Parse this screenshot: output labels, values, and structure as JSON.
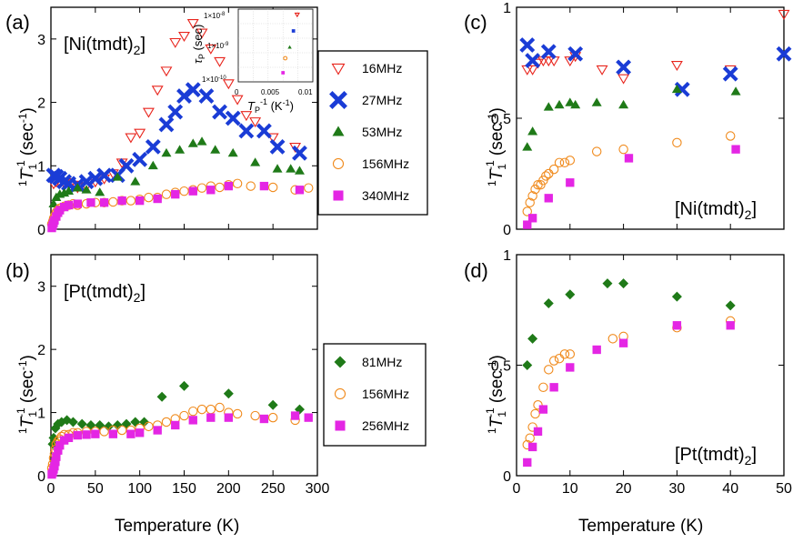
{
  "figure": {
    "xlabel": "Temperature (K)",
    "ylabel_pre": "1",
    "ylabel_T": "T",
    "ylabel_sub": "1",
    "ylabel_sup": "-1",
    "ylabel_unit": " (sec",
    "ylabel_unit_sup": "-1",
    "ylabel_close": ")"
  },
  "inset": {
    "ylabel": "τ",
    "ylabel_sub": "P",
    "ylabel_unit": " (sec)",
    "xlabel": "T",
    "xlabel_sub": "P",
    "xlabel_sup": "-1",
    "xlabel_unit": " (K",
    "xlabel_unit_sup": "-1",
    "xlabel_close": ")",
    "yticks": [
      "1×10",
      "1×10",
      "1×10"
    ],
    "ytick_exps": [
      "-8",
      "-9",
      "-10"
    ],
    "xticks": [
      "0",
      "0.005",
      "0.01"
    ]
  },
  "chart_data": [
    {
      "id": "a",
      "type": "scatter",
      "panel_label": "(a)",
      "compound": "[Ni(tmdt)",
      "compound_sub": "2",
      "compound_close": "]",
      "xlim": [
        0,
        300
      ],
      "ylim": [
        0,
        3.5
      ],
      "yticks": [
        "0",
        "1",
        "2",
        "3"
      ],
      "xticks": [],
      "series": [
        {
          "name": "16MHz",
          "marker": "tri-down-open",
          "color": "#e8241c",
          "x": [
            3,
            6,
            10,
            15,
            20,
            25,
            30,
            40,
            50,
            60,
            70,
            80,
            90,
            100,
            110,
            120,
            130,
            140,
            150,
            160,
            170,
            180,
            190,
            200,
            210,
            220,
            230,
            250,
            275
          ],
          "y": [
            0.72,
            0.75,
            0.74,
            0.73,
            0.74,
            0.7,
            0.66,
            0.68,
            0.75,
            0.8,
            0.88,
            1.05,
            1.45,
            1.52,
            1.85,
            2.2,
            2.5,
            2.95,
            3.05,
            3.25,
            3.1,
            2.85,
            2.65,
            2.3,
            2.05,
            1.8,
            1.7,
            1.45,
            1.3
          ]
        },
        {
          "name": "27MHz",
          "marker": "x-cross",
          "color": "#1a3cd6",
          "x": [
            3,
            6,
            10,
            15,
            20,
            30,
            40,
            50,
            60,
            75,
            85,
            100,
            115,
            130,
            140,
            150,
            160,
            175,
            190,
            205,
            220,
            240,
            255,
            280
          ],
          "y": [
            0.85,
            0.83,
            0.8,
            0.75,
            0.72,
            0.7,
            0.75,
            0.8,
            0.85,
            0.85,
            1.0,
            1.1,
            1.3,
            1.65,
            1.85,
            2.1,
            2.2,
            2.1,
            1.85,
            1.75,
            1.55,
            1.55,
            1.3,
            1.2
          ]
        },
        {
          "name": "53MHz",
          "marker": "tri-up",
          "color": "#1f7a18",
          "x": [
            3,
            6,
            10,
            15,
            20,
            30,
            40,
            55,
            75,
            95,
            115,
            130,
            145,
            160,
            170,
            185,
            205,
            230,
            255,
            270,
            280
          ],
          "y": [
            0.4,
            0.5,
            0.55,
            0.57,
            0.6,
            0.65,
            0.62,
            0.58,
            0.82,
            0.75,
            1.0,
            1.2,
            1.25,
            1.35,
            1.38,
            1.25,
            1.2,
            1.05,
            0.95,
            0.95,
            0.92
          ]
        },
        {
          "name": "156MHz",
          "marker": "circle-open",
          "color": "#f08a1c",
          "x": [
            1,
            2,
            3,
            4,
            5,
            6,
            8,
            10,
            12,
            15,
            20,
            25,
            30,
            40,
            50,
            60,
            70,
            80,
            90,
            100,
            110,
            120,
            130,
            140,
            150,
            160,
            170,
            180,
            190,
            200,
            210,
            225,
            250,
            275,
            290
          ],
          "y": [
            0.08,
            0.12,
            0.17,
            0.2,
            0.23,
            0.27,
            0.3,
            0.33,
            0.34,
            0.36,
            0.38,
            0.4,
            0.38,
            0.4,
            0.42,
            0.42,
            0.43,
            0.45,
            0.45,
            0.47,
            0.5,
            0.5,
            0.55,
            0.58,
            0.6,
            0.62,
            0.65,
            0.68,
            0.66,
            0.7,
            0.72,
            0.68,
            0.66,
            0.62,
            0.65
          ]
        },
        {
          "name": "340MHz",
          "marker": "square",
          "color": "#e426e4",
          "x": [
            1,
            2,
            3,
            4,
            6,
            8,
            10,
            15,
            20,
            30,
            45,
            60,
            80,
            100,
            120,
            140,
            160,
            180,
            200,
            240,
            280
          ],
          "y": [
            0.02,
            0.06,
            0.1,
            0.14,
            0.2,
            0.26,
            0.3,
            0.35,
            0.38,
            0.4,
            0.42,
            0.42,
            0.45,
            0.45,
            0.48,
            0.55,
            0.6,
            0.62,
            0.68,
            0.68,
            0.62
          ]
        }
      ]
    },
    {
      "id": "b",
      "type": "scatter",
      "panel_label": "(b)",
      "compound": "[Pt(tmdt)",
      "compound_sub": "2",
      "compound_close": "]",
      "xlim": [
        0,
        300
      ],
      "ylim": [
        0,
        3.5
      ],
      "yticks": [
        "0",
        "1",
        "2",
        "3"
      ],
      "xticks": [
        "0",
        "50",
        "100",
        "150",
        "200",
        "250",
        "300"
      ],
      "series": [
        {
          "name": "81MHz",
          "marker": "diamond",
          "color": "#1f7a18",
          "x": [
            2,
            3,
            5,
            8,
            12,
            18,
            25,
            35,
            45,
            55,
            65,
            75,
            85,
            95,
            105,
            125,
            150,
            200,
            250,
            280
          ],
          "y": [
            0.5,
            0.6,
            0.75,
            0.82,
            0.85,
            0.88,
            0.85,
            0.82,
            0.8,
            0.8,
            0.78,
            0.8,
            0.82,
            0.85,
            0.85,
            1.25,
            1.42,
            1.3,
            1.12,
            1.05
          ]
        },
        {
          "name": "156MHz",
          "marker": "circle-open",
          "color": "#f08a1c",
          "x": [
            1,
            2,
            3,
            4,
            5,
            6,
            8,
            10,
            12,
            15,
            20,
            25,
            30,
            40,
            50,
            60,
            70,
            80,
            90,
            100,
            110,
            120,
            130,
            140,
            150,
            160,
            170,
            180,
            190,
            200,
            210,
            230,
            250,
            275
          ],
          "y": [
            0.12,
            0.18,
            0.28,
            0.35,
            0.42,
            0.5,
            0.55,
            0.58,
            0.62,
            0.65,
            0.65,
            0.68,
            0.68,
            0.7,
            0.7,
            0.7,
            0.72,
            0.72,
            0.72,
            0.75,
            0.78,
            0.8,
            0.85,
            0.9,
            0.95,
            1.02,
            1.05,
            1.05,
            1.08,
            1.0,
            0.98,
            0.95,
            0.92,
            0.88
          ]
        },
        {
          "name": "256MHz",
          "marker": "square",
          "color": "#e426e4",
          "x": [
            1,
            2,
            3,
            4,
            5,
            6,
            8,
            10,
            15,
            20,
            30,
            40,
            50,
            70,
            90,
            100,
            120,
            140,
            160,
            180,
            200,
            240,
            275,
            290
          ],
          "y": [
            0.02,
            0.05,
            0.1,
            0.15,
            0.22,
            0.3,
            0.4,
            0.48,
            0.56,
            0.6,
            0.64,
            0.65,
            0.66,
            0.66,
            0.66,
            0.68,
            0.72,
            0.8,
            0.88,
            0.92,
            0.92,
            0.9,
            0.95,
            0.92
          ]
        }
      ]
    },
    {
      "id": "c",
      "type": "scatter",
      "panel_label": "(c)",
      "compound": "[Ni(tmdt)",
      "compound_sub": "2",
      "compound_close": "]",
      "xlim": [
        0,
        50
      ],
      "ylim": [
        0,
        1
      ],
      "yticks": [
        "0",
        "0.5",
        "1"
      ],
      "xticks": [],
      "series": [
        {
          "name": "16MHz",
          "marker": "tri-down-open",
          "color": "#e8241c",
          "x": [
            2,
            3,
            4,
            5,
            6,
            7,
            10,
            11,
            16,
            20,
            30,
            40,
            50
          ],
          "y": [
            0.72,
            0.72,
            0.75,
            0.76,
            0.76,
            0.76,
            0.76,
            0.78,
            0.72,
            0.68,
            0.74,
            0.72,
            0.97
          ]
        },
        {
          "name": "27MHz",
          "marker": "x-cross",
          "color": "#1a3cd6",
          "x": [
            2,
            3,
            6,
            11,
            20,
            31,
            40,
            50
          ],
          "y": [
            0.83,
            0.76,
            0.8,
            0.79,
            0.73,
            0.63,
            0.7,
            0.79
          ]
        },
        {
          "name": "53MHz",
          "marker": "tri-up",
          "color": "#1f7a18",
          "x": [
            2,
            3,
            6,
            8,
            10,
            11,
            15,
            20,
            30,
            41
          ],
          "y": [
            0.37,
            0.44,
            0.55,
            0.56,
            0.57,
            0.56,
            0.57,
            0.56,
            0.63,
            0.62
          ]
        },
        {
          "name": "156MHz",
          "marker": "circle-open",
          "color": "#f08a1c",
          "x": [
            2,
            2.5,
            3,
            3.5,
            4,
            4.5,
            5,
            5.5,
            6,
            7,
            8,
            9,
            10,
            15,
            20,
            30,
            40
          ],
          "y": [
            0.08,
            0.12,
            0.15,
            0.18,
            0.2,
            0.2,
            0.22,
            0.24,
            0.25,
            0.27,
            0.3,
            0.3,
            0.31,
            0.35,
            0.36,
            0.39,
            0.42
          ]
        },
        {
          "name": "340MHz",
          "marker": "square",
          "color": "#e426e4",
          "x": [
            2,
            3,
            6,
            10,
            21,
            41
          ],
          "y": [
            0.02,
            0.05,
            0.14,
            0.21,
            0.32,
            0.36
          ]
        }
      ]
    },
    {
      "id": "d",
      "type": "scatter",
      "panel_label": "(d)",
      "compound": "[Pt(tmdt)",
      "compound_sub": "2",
      "compound_close": "]",
      "xlim": [
        0,
        50
      ],
      "ylim": [
        0,
        1
      ],
      "yticks": [
        "0",
        "0.5",
        "1"
      ],
      "xticks": [
        "0",
        "10",
        "20",
        "30",
        "40",
        "50"
      ],
      "series": [
        {
          "name": "81MHz",
          "marker": "diamond",
          "color": "#1f7a18",
          "x": [
            2,
            3,
            6,
            10,
            17,
            20,
            30,
            40
          ],
          "y": [
            0.5,
            0.62,
            0.78,
            0.82,
            0.87,
            0.87,
            0.81,
            0.77
          ]
        },
        {
          "name": "156MHz",
          "marker": "circle-open",
          "color": "#f08a1c",
          "x": [
            2,
            2.5,
            3,
            3.5,
            4,
            5,
            6,
            7,
            8,
            9,
            10,
            18,
            20,
            30,
            40
          ],
          "y": [
            0.14,
            0.17,
            0.22,
            0.28,
            0.32,
            0.4,
            0.48,
            0.52,
            0.53,
            0.55,
            0.55,
            0.62,
            0.63,
            0.67,
            0.7
          ]
        },
        {
          "name": "256MHz",
          "marker": "square",
          "color": "#e426e4",
          "x": [
            2,
            3,
            4,
            5,
            7,
            10,
            15,
            20,
            30,
            40
          ],
          "y": [
            0.06,
            0.13,
            0.2,
            0.3,
            0.4,
            0.49,
            0.57,
            0.6,
            0.68,
            0.68
          ]
        }
      ]
    },
    {
      "id": "inset",
      "type": "scatter",
      "xlim": [
        0,
        0.01
      ],
      "ylim": [
        -10,
        -8
      ],
      "yscale": "log10",
      "series": [
        {
          "name": "16MHz",
          "marker": "tri-down-open",
          "color": "#e8241c",
          "x": [
            0.0079
          ],
          "y": [
            -8.15
          ]
        },
        {
          "name": "27MHz",
          "marker": "square",
          "color": "#1a3cd6",
          "x": [
            0.0074
          ],
          "y": [
            -8.6
          ]
        },
        {
          "name": "53MHz",
          "marker": "tri-up",
          "color": "#1f7a18",
          "x": [
            0.0069
          ],
          "y": [
            -9.05
          ]
        },
        {
          "name": "156MHz",
          "marker": "circle-open",
          "color": "#f08a1c",
          "x": [
            0.0063
          ],
          "y": [
            -9.35
          ]
        },
        {
          "name": "340MHz",
          "marker": "square",
          "color": "#e426e4",
          "x": [
            0.006
          ],
          "y": [
            -9.75
          ]
        }
      ]
    }
  ]
}
